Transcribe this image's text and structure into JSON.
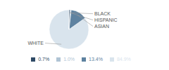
{
  "chart_data": {
    "type": "pie",
    "categories": [
      "WHITE",
      "ASIAN",
      "HISPANIC",
      "BLACK"
    ],
    "values": [
      84.9,
      13.4,
      1.0,
      0.7
    ],
    "value_labels": [
      "84.9%",
      "13.4%",
      "1.0%",
      "0.7%"
    ],
    "colors": [
      "#d9e4ed",
      "#5e82a0",
      "#b0c4d4",
      "#2e4a65"
    ],
    "legend": "bottom"
  }
}
